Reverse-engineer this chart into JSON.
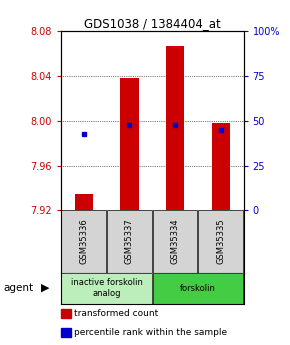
{
  "title": "GDS1038 / 1384404_at",
  "samples": [
    "GSM35336",
    "GSM35337",
    "GSM35334",
    "GSM35335"
  ],
  "bar_values": [
    7.935,
    8.038,
    8.067,
    7.998
  ],
  "bar_base": 7.92,
  "percentile_values": [
    7.988,
    7.996,
    7.996,
    7.992
  ],
  "ylim": [
    7.92,
    8.08
  ],
  "yticks_left": [
    7.92,
    7.96,
    8.0,
    8.04,
    8.08
  ],
  "yticks_right": [
    0,
    25,
    50,
    75,
    100
  ],
  "bar_color": "#cc0000",
  "percentile_color": "#0000cc",
  "agent_groups": [
    {
      "label": "inactive forskolin\nanalog",
      "cols": [
        0,
        1
      ],
      "color": "#bbeebb"
    },
    {
      "label": "forskolin",
      "cols": [
        2,
        3
      ],
      "color": "#44cc44"
    }
  ],
  "agent_label": "agent",
  "legend_items": [
    {
      "color": "#cc0000",
      "label": "transformed count"
    },
    {
      "color": "#0000cc",
      "label": "percentile rank within the sample"
    }
  ],
  "background_color": "#ffffff",
  "bar_width": 0.4
}
